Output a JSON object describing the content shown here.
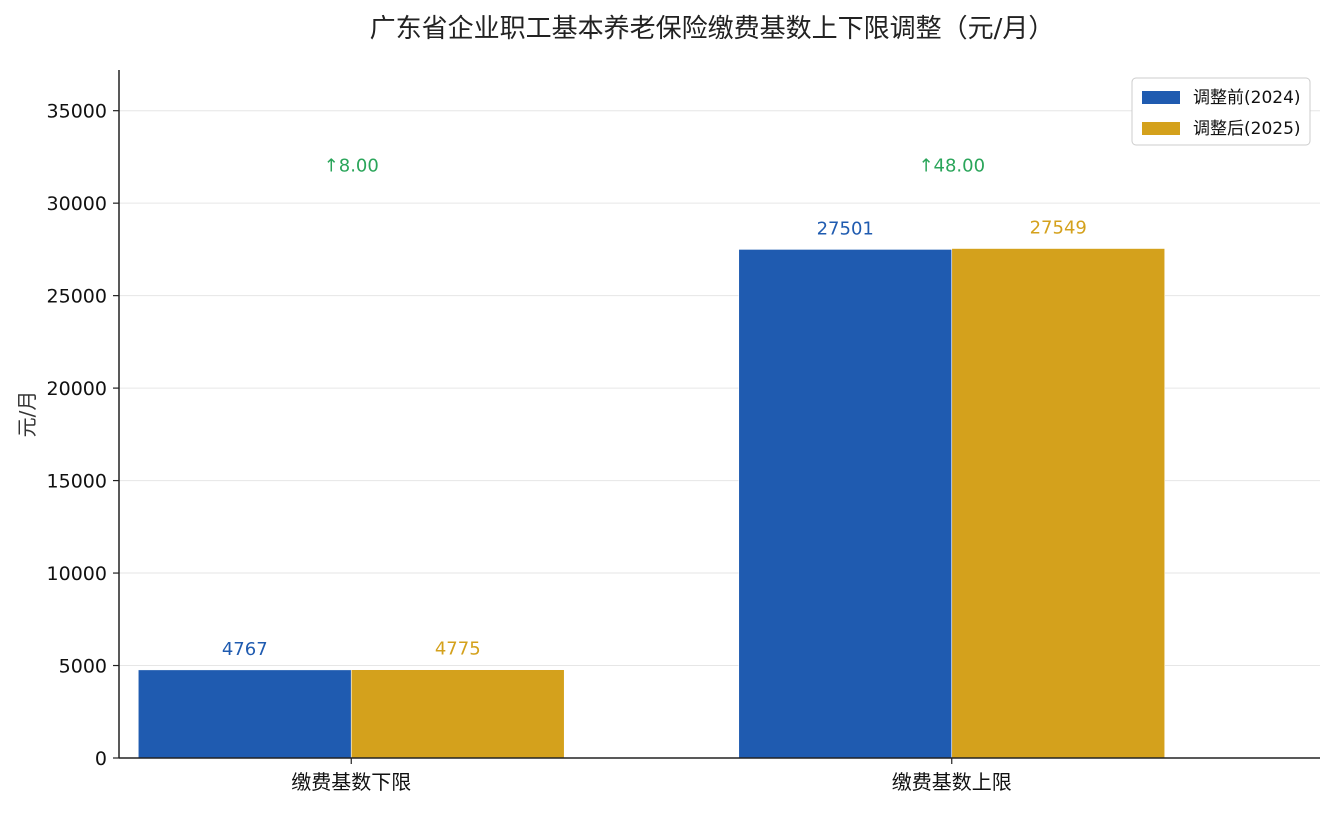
{
  "chart_data": {
    "type": "bar",
    "title": "广东省企业职工基本养老保险缴费基数上下限调整（元/月）",
    "xlabel": "",
    "ylabel": "元/月",
    "categories": [
      "缴费基数下限",
      "缴费基数上限"
    ],
    "series": [
      {
        "name": "调整前(2024)",
        "values": [
          4767,
          27501
        ],
        "color": "#1f5bb0"
      },
      {
        "name": "调整后(2025)",
        "values": [
          4775,
          27549
        ],
        "color": "#d4a11c"
      }
    ],
    "data_labels": [
      [
        "4767",
        "27501"
      ],
      [
        "4775",
        "27549"
      ]
    ],
    "annotations": [
      {
        "category": "缴费基数下限",
        "text": "↑8.00",
        "y": 32100
      },
      {
        "category": "缴费基数上限",
        "text": "↑48.00",
        "y": 32100
      }
    ],
    "annotation_color": "#2aa55a",
    "ylim": [
      0,
      37200
    ],
    "yticks": [
      0,
      5000,
      10000,
      15000,
      20000,
      25000,
      30000,
      35000
    ],
    "ytick_labels": [
      "0",
      "5000",
      "10000",
      "15000",
      "20000",
      "25000",
      "30000",
      "35000"
    ],
    "grid": true,
    "legend_position": "top-right"
  }
}
